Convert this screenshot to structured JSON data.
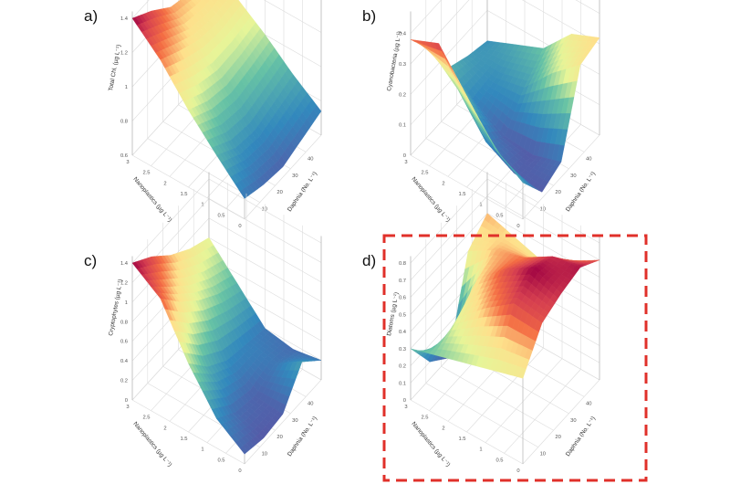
{
  "panels": [
    {
      "letter": "a)",
      "zlabel": "Total Chl. (µg L⁻¹)",
      "zticks": [
        "0.6",
        "0.8",
        "1",
        "1.2",
        "1.4"
      ],
      "zmin": 0.6,
      "zmax": 1.4,
      "nano_label": "Nanoplastics (µg L⁻¹)",
      "nano_ticks": [
        "0",
        "0.5",
        "1",
        "1.5",
        "2",
        "2.5",
        "3"
      ],
      "daph_label": "Daphnia (No. L⁻¹)",
      "daph_ticks": [
        "10",
        "20",
        "30",
        "40"
      ],
      "highlighted": false
    },
    {
      "letter": "b)",
      "zlabel": "Cyanobacteria (µg L⁻¹)",
      "zticks": [
        "0",
        "0.1",
        "0.2",
        "0.3",
        "0.4"
      ],
      "zmin": 0.0,
      "zmax": 0.45,
      "nano_label": "Nanoplastics (µg L⁻¹)",
      "nano_ticks": [
        "0",
        "0.5",
        "1",
        "1.5",
        "2",
        "2.5",
        "3"
      ],
      "daph_label": "Daphnia (No. L⁻¹)",
      "daph_ticks": [
        "10",
        "20",
        "30",
        "40"
      ],
      "highlighted": false
    },
    {
      "letter": "c)",
      "zlabel": "Cryptophytes (µg L⁻¹)",
      "zticks": [
        "0",
        "0.2",
        "0.4",
        "0.6",
        "0.8",
        "1",
        "1.2",
        "1.4"
      ],
      "zmin": 0.0,
      "zmax": 1.4,
      "nano_label": "Nanoplastics (µg L⁻¹)",
      "nano_ticks": [
        "0",
        "0.5",
        "1",
        "1.5",
        "2",
        "2.5",
        "3"
      ],
      "daph_label": "Daphnia (No. L⁻¹)",
      "daph_ticks": [
        "10",
        "20",
        "30",
        "40"
      ],
      "highlighted": false
    },
    {
      "letter": "d)",
      "zlabel": "Diatoms (µg L⁻¹)",
      "zticks": [
        "0",
        "0.1",
        "0.2",
        "0.3",
        "0.4",
        "0.5",
        "0.6",
        "0.7",
        "0.8"
      ],
      "zmin": 0.0,
      "zmax": 0.8,
      "nano_label": "Nanoplastics (µg L⁻¹)",
      "nano_ticks": [
        "0",
        "0.5",
        "1",
        "1.5",
        "2",
        "2.5",
        "3"
      ],
      "daph_label": "Daphnia (No. L⁻¹)",
      "daph_ticks": [
        "10",
        "20",
        "30",
        "40"
      ],
      "highlighted": true
    }
  ],
  "highlight_color": "#e0302a",
  "colorscale": "spectral (violet = low, red = high)",
  "chart_data": [
    {
      "type": "surface",
      "panel": "a)",
      "x_name": "Nanoplastics (µg L⁻¹)",
      "y_name": "Daphnia (No. L⁻¹)",
      "z_name": "Total Chl. (µg L⁻¹)",
      "x": [
        0,
        0.75,
        1.5,
        2.25,
        3
      ],
      "y": [
        5,
        15,
        25,
        35,
        45
      ],
      "z": [
        [
          0.72,
          0.68,
          0.66,
          0.7,
          0.74
        ],
        [
          0.88,
          0.8,
          0.78,
          0.82,
          0.86
        ],
        [
          1.05,
          0.98,
          0.95,
          0.97,
          1.0
        ],
        [
          1.25,
          1.18,
          1.12,
          1.1,
          1.12
        ],
        [
          1.4,
          1.32,
          1.22,
          1.18,
          1.2
        ]
      ],
      "zlim": [
        0.6,
        1.4
      ]
    },
    {
      "type": "surface",
      "panel": "b)",
      "x_name": "Nanoplastics (µg L⁻¹)",
      "y_name": "Daphnia (No. L⁻¹)",
      "z_name": "Cyanobacteria (µg L⁻¹)",
      "x": [
        0,
        0.75,
        1.5,
        2.25,
        3
      ],
      "y": [
        5,
        15,
        25,
        35,
        45
      ],
      "z": [
        [
          0.12,
          0.02,
          0.05,
          0.3,
          0.32
        ],
        [
          0.18,
          0.03,
          0.02,
          0.22,
          0.28
        ],
        [
          0.3,
          0.08,
          0.03,
          0.12,
          0.18
        ],
        [
          0.42,
          0.2,
          0.08,
          0.1,
          0.14
        ],
        [
          0.38,
          0.28,
          0.15,
          0.12,
          0.1
        ]
      ],
      "zlim": [
        0,
        0.45
      ]
    },
    {
      "type": "surface",
      "panel": "c)",
      "x_name": "Nanoplastics (µg L⁻¹)",
      "y_name": "Daphnia (No. L⁻¹)",
      "z_name": "Cryptophytes (µg L⁻¹)",
      "x": [
        0,
        0.75,
        1.5,
        2.25,
        3
      ],
      "y": [
        5,
        15,
        25,
        35,
        45
      ],
      "z": [
        [
          0.1,
          0.05,
          0.08,
          0.4,
          0.2
        ],
        [
          0.3,
          0.15,
          0.1,
          0.2,
          0.15
        ],
        [
          0.7,
          0.45,
          0.3,
          0.25,
          0.2
        ],
        [
          1.2,
          0.95,
          0.75,
          0.6,
          0.5
        ],
        [
          1.4,
          1.25,
          1.05,
          0.9,
          0.8
        ]
      ],
      "zlim": [
        0,
        1.4
      ]
    },
    {
      "type": "surface",
      "panel": "d)",
      "x_name": "Nanoplastics (µg L⁻¹)",
      "y_name": "Daphnia (No. L⁻¹)",
      "z_name": "Diatoms (µg L⁻¹)",
      "x": [
        0,
        0.75,
        1.5,
        2.25,
        3
      ],
      "y": [
        5,
        15,
        25,
        35,
        45
      ],
      "z": [
        [
          0.5,
          0.7,
          0.75,
          0.78,
          0.7
        ],
        [
          0.45,
          0.72,
          0.8,
          0.75,
          0.6
        ],
        [
          0.4,
          0.6,
          0.7,
          0.65,
          0.5
        ],
        [
          0.35,
          0.45,
          0.55,
          0.6,
          0.55
        ],
        [
          0.3,
          0.1,
          0.0,
          0.5,
          0.6
        ]
      ],
      "zlim": [
        0,
        0.8
      ]
    }
  ]
}
